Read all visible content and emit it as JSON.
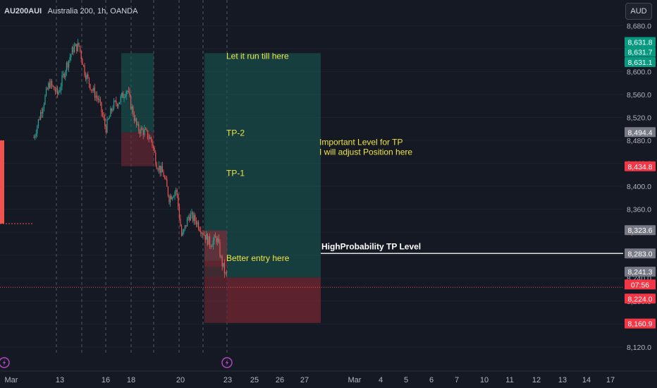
{
  "header": {
    "symbol": "AU200AUI",
    "description": "Australia 200, 1h, OANDA",
    "currency_button": "AUD"
  },
  "colors": {
    "background": "#151924",
    "up": "#26a69a",
    "down": "#ef5350",
    "target_zone": "#0b3b37",
    "stop_zone": "#4a1c25",
    "annotation": "#f0e442",
    "level_line": "#e0e0e0",
    "last_price_line": "#ef5350"
  },
  "chart_data": {
    "type": "candlestick",
    "y_axis": {
      "range": [
        8110,
        8700
      ],
      "ticks": [
        8680,
        8640,
        8600,
        8560,
        8520,
        8480,
        8440,
        8400,
        8360,
        8320,
        8280,
        8240,
        8200,
        8160,
        8120
      ],
      "tick_labels": [
        "8,680.0",
        "8,640.0",
        "8,600.0",
        "8,560.0",
        "8,520.0",
        "8,480.0",
        "8,440.0",
        "8,400.0",
        "8,360.0",
        "8,320.0",
        "8,280.0",
        "8,240.0",
        "8,200.0",
        "8,160.0",
        "8,120.0"
      ]
    },
    "x_axis": {
      "labels": [
        "Mar",
        "13",
        "16",
        "18",
        "20",
        "23",
        "25",
        "26",
        "27",
        "Mar",
        "4",
        "5",
        "6",
        "7",
        "10",
        "11",
        "12",
        "13",
        "14",
        "17"
      ]
    },
    "price_path": [
      [
        0,
        8600
      ],
      [
        48,
        8485
      ],
      [
        58,
        8530
      ],
      [
        70,
        8580
      ],
      [
        82,
        8560
      ],
      [
        94,
        8610
      ],
      [
        104,
        8640
      ],
      [
        112,
        8645
      ],
      [
        120,
        8600
      ],
      [
        130,
        8570
      ],
      [
        140,
        8550
      ],
      [
        150,
        8500
      ],
      [
        160,
        8540
      ],
      [
        170,
        8550
      ],
      [
        180,
        8570
      ],
      [
        186,
        8540
      ],
      [
        195,
        8500
      ],
      [
        205,
        8495
      ],
      [
        215,
        8480
      ],
      [
        222,
        8440
      ],
      [
        232,
        8420
      ],
      [
        240,
        8380
      ],
      [
        250,
        8395
      ],
      [
        258,
        8310
      ],
      [
        268,
        8350
      ],
      [
        278,
        8340
      ],
      [
        288,
        8320
      ],
      [
        298,
        8300
      ],
      [
        308,
        8310
      ],
      [
        314,
        8270
      ],
      [
        320,
        8245
      ]
    ],
    "positions": [
      {
        "side": "long",
        "entry": 8494,
        "target": 8632,
        "stop": 8435,
        "start": 9.45,
        "end": 9.75
      },
      {
        "side": "long",
        "entry": 8241,
        "target": 8632,
        "stop": 8162,
        "start": 10.5,
        "end": 12.0
      }
    ],
    "left_rect": {
      "top": 8480,
      "bottom": 8335
    },
    "sub_zones": [
      {
        "start": 11.4,
        "end": 11.55,
        "top": 8323,
        "bottom": 8260
      },
      {
        "start": 11.4,
        "end": 11.5,
        "top": 8270,
        "bottom": 8235
      }
    ],
    "annotations": [
      {
        "text": "Let it run till here",
        "price": 8622,
        "pos": 11.75
      },
      {
        "text": "TP-2",
        "price": 8488,
        "pos": 11.75
      },
      {
        "text": "TP-1",
        "price": 8418,
        "pos": 11.75
      },
      {
        "text": "Better entry here",
        "price": 8270,
        "pos": 11.75
      },
      {
        "text": "Important Level for TP",
        "price": 8472,
        "pos": 12.9
      },
      {
        "text": "I will adjust Position here",
        "price": 8455,
        "pos": 12.9
      }
    ],
    "level_line": {
      "price": 8283.0,
      "label": "HighProbability TP Level",
      "start": 12.0
    },
    "last_price": 8224.0,
    "countdown": "07:56",
    "price_labels": [
      {
        "value": "8,631.8",
        "price": 8631.8,
        "color": "#089981"
      },
      {
        "value": "8,631.7",
        "price": 8631.7,
        "color": "#089981"
      },
      {
        "value": "8,631.1",
        "price": 8631.1,
        "color": "#089981"
      },
      {
        "value": "8,494.4",
        "price": 8494.4,
        "color": "#787b86"
      },
      {
        "value": "8,434.8",
        "price": 8434.8,
        "color": "#f23645"
      },
      {
        "value": "8,323.6",
        "price": 8323.6,
        "color": "#787b86"
      },
      {
        "value": "8,283.0",
        "price": 8283.0,
        "color": "#787b86"
      },
      {
        "value": "8,241.3",
        "price": 8241.3,
        "color": "#787b86"
      },
      {
        "value": "8,224.0",
        "price": 8224.0,
        "color": "#f23645"
      },
      {
        "value": "8,160.9",
        "price": 8160.9,
        "color": "#f23645"
      }
    ],
    "session_markers": [
      1,
      11.75
    ],
    "grid": true
  }
}
